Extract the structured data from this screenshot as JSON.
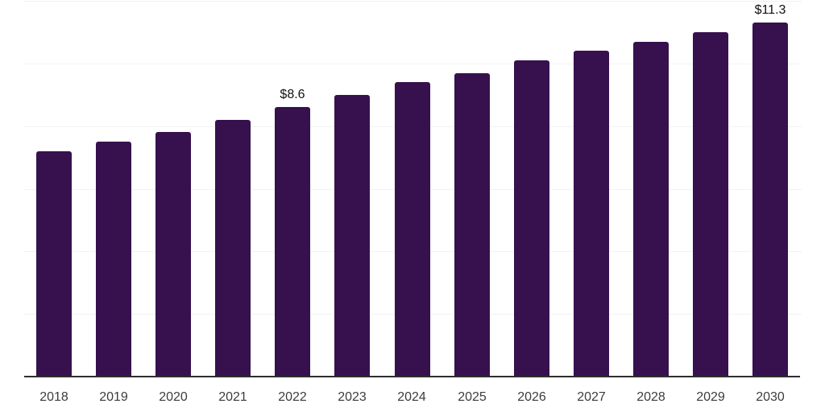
{
  "chart_data": {
    "type": "bar",
    "categories": [
      "2018",
      "2019",
      "2020",
      "2021",
      "2022",
      "2023",
      "2024",
      "2025",
      "2026",
      "2027",
      "2028",
      "2029",
      "2030"
    ],
    "values": [
      7.2,
      7.5,
      7.8,
      8.2,
      8.6,
      9.0,
      9.4,
      9.7,
      10.1,
      10.4,
      10.7,
      11.0,
      11.3
    ],
    "data_labels": {
      "2022": "$8.6",
      "2030": "$11.3"
    },
    "title": "",
    "xlabel": "",
    "ylabel": "",
    "ylim": [
      0,
      12
    ],
    "grid_step": 2,
    "grid": "horizontal-only",
    "legend_position": "none",
    "y_axis_tick_labels_visible": false,
    "colors": {
      "bar": "#36114E",
      "gridline": "#f2f2f2",
      "axis_line": "#2e2e2e",
      "tick_label": "#3c3c3c",
      "data_label": "#111111"
    }
  }
}
